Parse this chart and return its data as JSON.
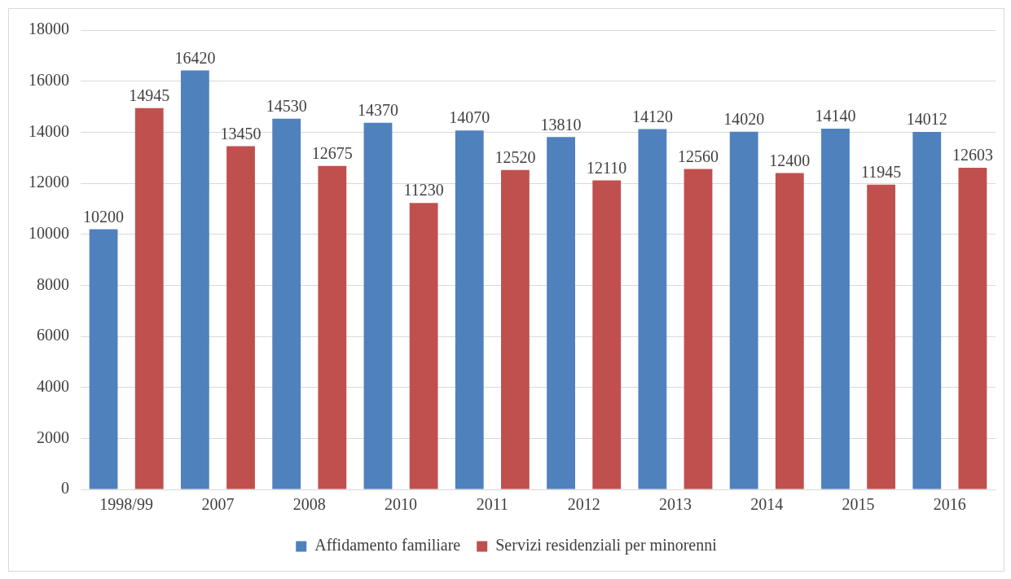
{
  "chart_data": {
    "type": "bar",
    "categories": [
      "1998/99",
      "2007",
      "2008",
      "2010",
      "2011",
      "2012",
      "2013",
      "2014",
      "2015",
      "2016"
    ],
    "series": [
      {
        "name": "Affidamento familiare",
        "color": "#4f81bd",
        "values": [
          10200,
          16420,
          14530,
          14370,
          14070,
          13810,
          14120,
          14020,
          14140,
          14012
        ]
      },
      {
        "name": "Servizi residenziali per minorenni",
        "color": "#c0504d",
        "values": [
          14945,
          13450,
          12675,
          11230,
          12520,
          12110,
          12560,
          12400,
          11945,
          12603
        ]
      }
    ],
    "ylim": [
      0,
      18000
    ],
    "yticks": [
      0,
      2000,
      4000,
      6000,
      8000,
      10000,
      12000,
      14000,
      16000,
      18000
    ],
    "grid": "y",
    "legend": "bottom",
    "data_labels": true
  }
}
